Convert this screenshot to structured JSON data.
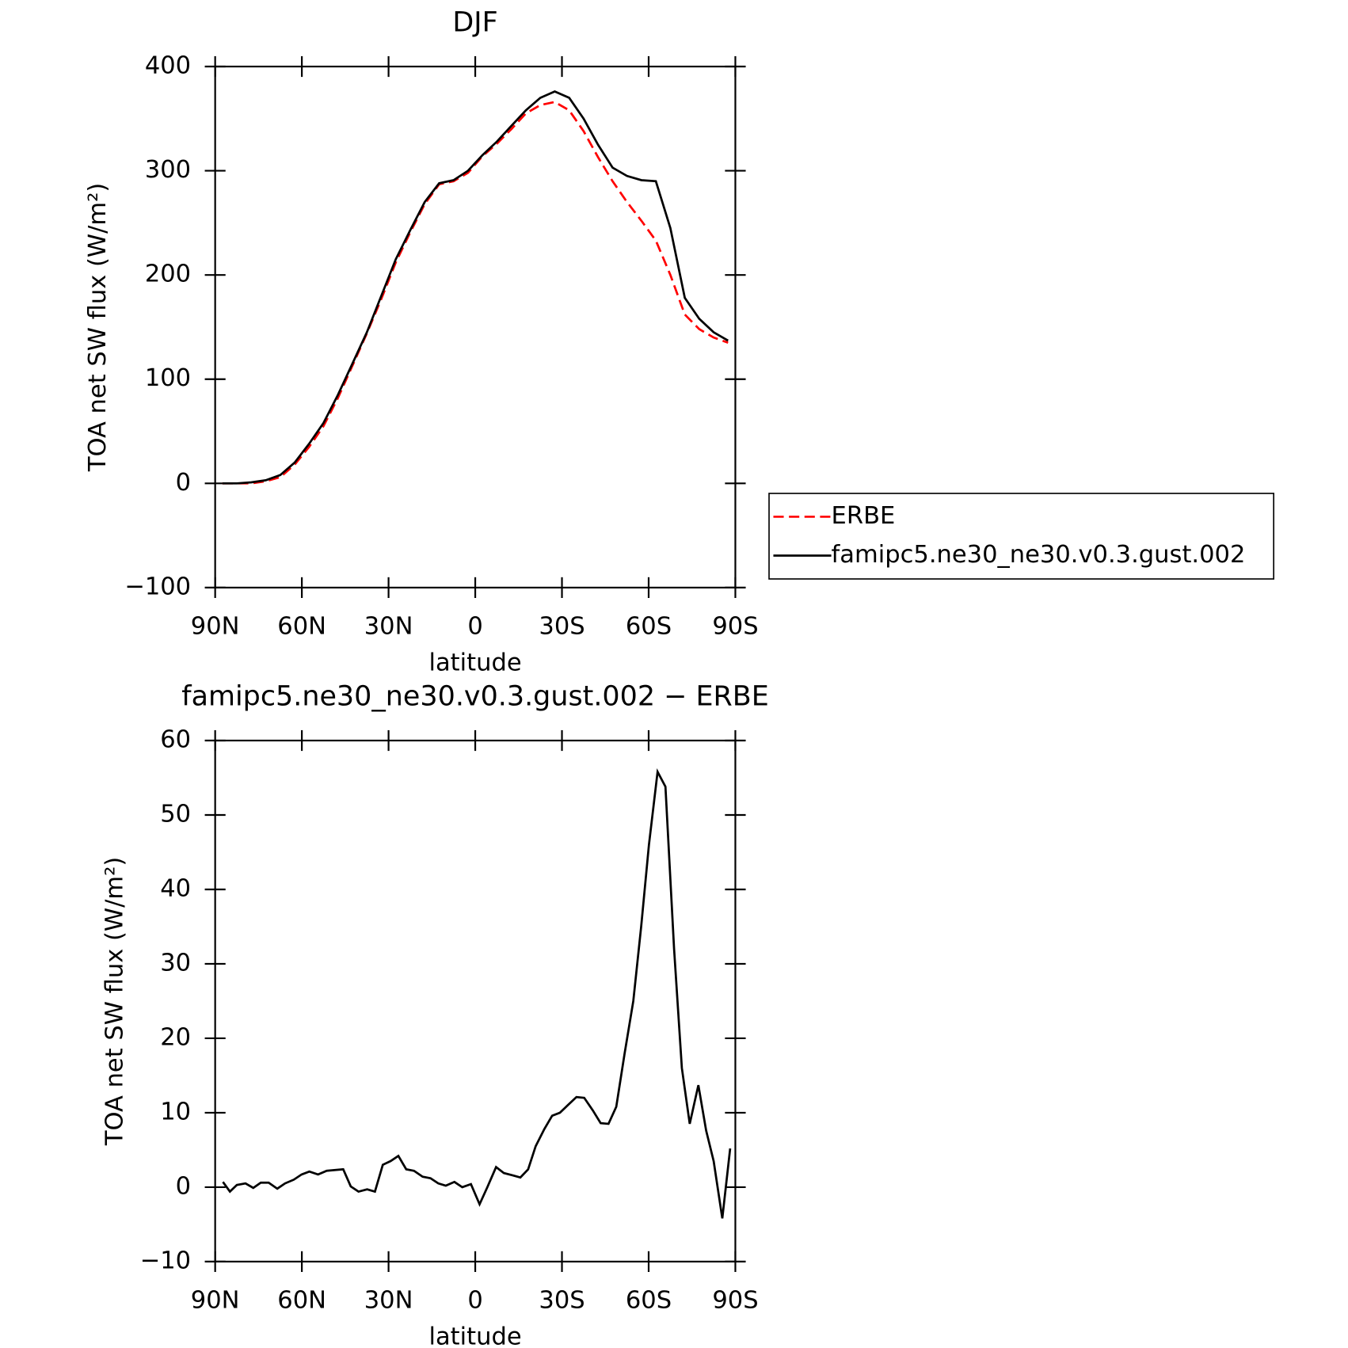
{
  "chart_data": [
    {
      "type": "line",
      "title": "DJF",
      "xlabel": "latitude",
      "ylabel": "TOA net SW flux (W/m²)",
      "x": [
        87.5,
        82.5,
        77.5,
        72.5,
        67.5,
        62.5,
        57.5,
        52.5,
        47.5,
        42.5,
        37.5,
        32.5,
        27.5,
        22.5,
        17.5,
        12.5,
        7.5,
        2.5,
        -2.5,
        -7.5,
        -12.5,
        -17.5,
        -22.5,
        -27.5,
        -32.5,
        -37.5,
        -42.5,
        -47.5,
        -52.5,
        -57.5,
        -62.5,
        -67.5,
        -72.5,
        -77.5,
        -82.5,
        -87.5
      ],
      "series": [
        {
          "name": "ERBE",
          "color": "#ff0000",
          "dashed": true,
          "values": [
            0,
            0,
            0,
            2,
            6,
            18,
            35,
            55,
            82,
            113,
            144,
            177,
            212,
            241,
            268,
            287,
            290,
            298,
            314,
            326,
            340,
            355,
            363,
            366,
            358,
            338,
            313,
            290,
            270,
            252,
            233,
            200,
            162,
            148,
            140,
            135
          ]
        },
        {
          "name": "famipc5.ne30_ne30.v0.3.gust.002",
          "color": "#000000",
          "dashed": false,
          "values": [
            0,
            0,
            1,
            3,
            8,
            20,
            38,
            58,
            85,
            115,
            145,
            180,
            215,
            243,
            270,
            288,
            291,
            300,
            315,
            328,
            343,
            358,
            370,
            376,
            370,
            350,
            325,
            303,
            295,
            291,
            290,
            245,
            178,
            158,
            145,
            137
          ]
        }
      ],
      "xlim": [
        90,
        -90
      ],
      "xticks": [
        {
          "value": 90,
          "label": "90N"
        },
        {
          "value": 60,
          "label": "60N"
        },
        {
          "value": 30,
          "label": "30N"
        },
        0,
        {
          "value": -30,
          "label": "30S"
        },
        {
          "value": -60,
          "label": "60S"
        },
        {
          "value": -90,
          "label": "90S"
        }
      ],
      "ylim": [
        -100,
        400
      ],
      "yticks": [
        {
          "value": -100,
          "label": "−100"
        },
        0,
        100,
        200,
        300,
        400
      ],
      "legend": true
    },
    {
      "type": "line",
      "title": "famipc5.ne30_ne30.v0.3.gust.002 − ERBE",
      "xlabel": "latitude",
      "ylabel": "TOA net SW flux (W/m²)",
      "x": [
        87.3,
        84.9,
        82.5,
        79.5,
        76.8,
        74.2,
        71.5,
        68.5,
        65.8,
        62.8,
        60.1,
        57.4,
        54.4,
        51.4,
        48.4,
        45.7,
        43.1,
        40.4,
        37.4,
        34.7,
        32.0,
        29.3,
        26.6,
        23.9,
        21.2,
        18.2,
        15.5,
        12.8,
        10.2,
        7.2,
        4.5,
        1.5,
        -1.5,
        -4.2,
        -7.2,
        -9.9,
        -12.9,
        -15.6,
        -18.3,
        -20.9,
        -23.9,
        -26.6,
        -29.3,
        -32.0,
        -35.0,
        -37.7,
        -40.7,
        -43.4,
        -46.1,
        -48.8,
        -51.7,
        -54.7,
        -57.4,
        -60.1,
        -63.1,
        -65.8,
        -68.8,
        -71.5,
        -74.2,
        -77.2,
        -79.9,
        -82.5,
        -85.5,
        -88.2
      ],
      "color": "#000000",
      "values": [
        0.7,
        -0.6,
        0.3,
        0.5,
        -0.1,
        0.6,
        0.6,
        -0.2,
        0.5,
        1.0,
        1.7,
        2.1,
        1.7,
        2.2,
        2.3,
        2.4,
        0.1,
        -0.6,
        -0.3,
        -0.6,
        3.0,
        3.5,
        4.2,
        2.4,
        2.2,
        1.4,
        1.2,
        0.5,
        0.2,
        0.7,
        0.0,
        0.4,
        -2.3,
        0.0,
        2.7,
        1.9,
        1.6,
        1.3,
        2.4,
        5.5,
        7.8,
        9.6,
        10.0,
        11.0,
        12.1,
        12.0,
        10.3,
        8.6,
        8.5,
        10.8,
        18,
        25,
        35,
        46,
        55.8,
        53.8,
        32,
        16,
        8.5,
        13.7,
        7.6,
        3.5,
        -4.2,
        5.2
      ],
      "xlim": [
        90,
        -90
      ],
      "xticks": [
        {
          "value": 90,
          "label": "90N"
        },
        {
          "value": 60,
          "label": "60N"
        },
        {
          "value": 30,
          "label": "30N"
        },
        0,
        {
          "value": -30,
          "label": "30S"
        },
        {
          "value": -60,
          "label": "60S"
        },
        {
          "value": -90,
          "label": "90S"
        }
      ],
      "ylim": [
        -10,
        60
      ],
      "yticks": [
        {
          "value": -10,
          "label": "−10"
        },
        0,
        10,
        20,
        30,
        40,
        50,
        60
      ]
    }
  ]
}
